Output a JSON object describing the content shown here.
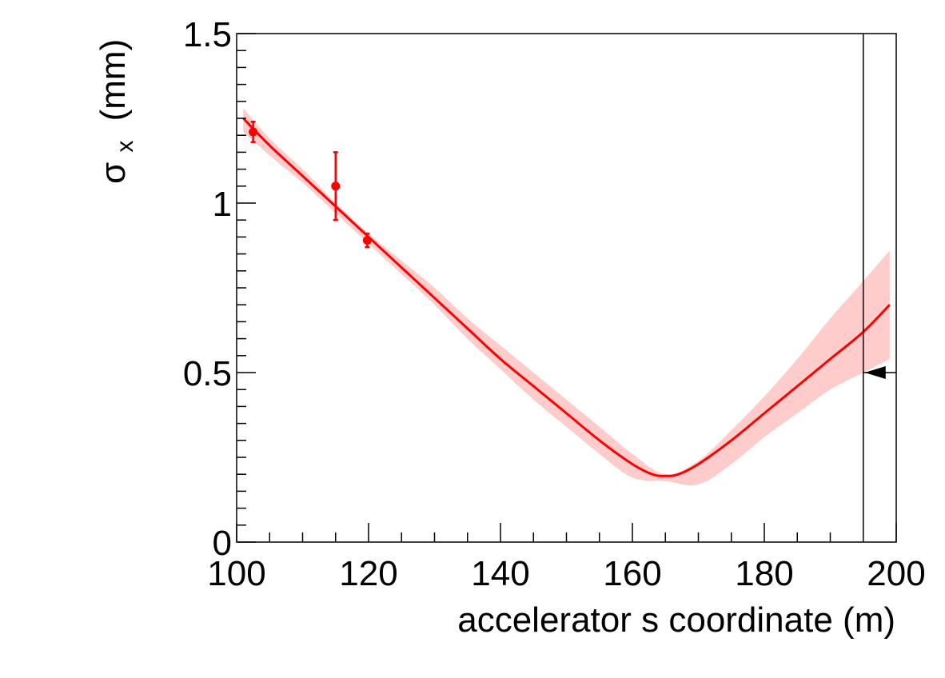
{
  "chart_data": {
    "type": "line",
    "title": "",
    "xlabel": "accelerator s coordinate (m)",
    "ylabel_symbol": "σ",
    "ylabel_subscript": "x",
    "ylabel_unit": "(mm)",
    "xlim": [
      100,
      200
    ],
    "ylim": [
      0,
      1.5
    ],
    "x_ticks": [
      "100",
      "120",
      "140",
      "160",
      "180",
      "200"
    ],
    "y_ticks": [
      "0",
      "0.5",
      "1",
      "1.5"
    ],
    "grid": false,
    "colors": {
      "fit_line": "#ff0000",
      "band": "#ffcccc",
      "points": "#ff0000",
      "marker_line": "#000000"
    },
    "fit_curve": {
      "x": [
        101,
        105,
        110,
        115,
        120,
        125,
        130,
        135,
        140,
        145,
        150,
        155,
        160,
        163,
        165,
        167,
        170,
        175,
        180,
        185,
        190,
        195,
        199
      ],
      "y": [
        1.25,
        1.17,
        1.08,
        0.99,
        0.9,
        0.81,
        0.72,
        0.63,
        0.54,
        0.46,
        0.38,
        0.3,
        0.23,
        0.2,
        0.195,
        0.2,
        0.23,
        0.3,
        0.38,
        0.46,
        0.54,
        0.62,
        0.7
      ]
    },
    "error_band": {
      "x": [
        101,
        105,
        110,
        115,
        120,
        125,
        130,
        135,
        140,
        145,
        150,
        155,
        160,
        165,
        170,
        175,
        180,
        185,
        190,
        195,
        199
      ],
      "upper": [
        1.28,
        1.19,
        1.1,
        1.0,
        0.91,
        0.83,
        0.75,
        0.66,
        0.58,
        0.5,
        0.42,
        0.34,
        0.26,
        0.2,
        0.24,
        0.33,
        0.43,
        0.54,
        0.66,
        0.77,
        0.86
      ],
      "lower": [
        1.21,
        1.14,
        1.06,
        0.97,
        0.88,
        0.79,
        0.7,
        0.6,
        0.51,
        0.42,
        0.34,
        0.26,
        0.19,
        0.18,
        0.17,
        0.23,
        0.31,
        0.38,
        0.45,
        0.5,
        0.54
      ]
    },
    "points": [
      {
        "x": 102.5,
        "y": 1.21,
        "err": 0.03
      },
      {
        "x": 115.0,
        "y": 1.05,
        "err": 0.1
      },
      {
        "x": 119.8,
        "y": 0.89,
        "err": 0.02
      }
    ],
    "vertical_marker_x": 195,
    "arrow_marker": {
      "x": 195,
      "y": 0.5,
      "direction": "left"
    }
  }
}
